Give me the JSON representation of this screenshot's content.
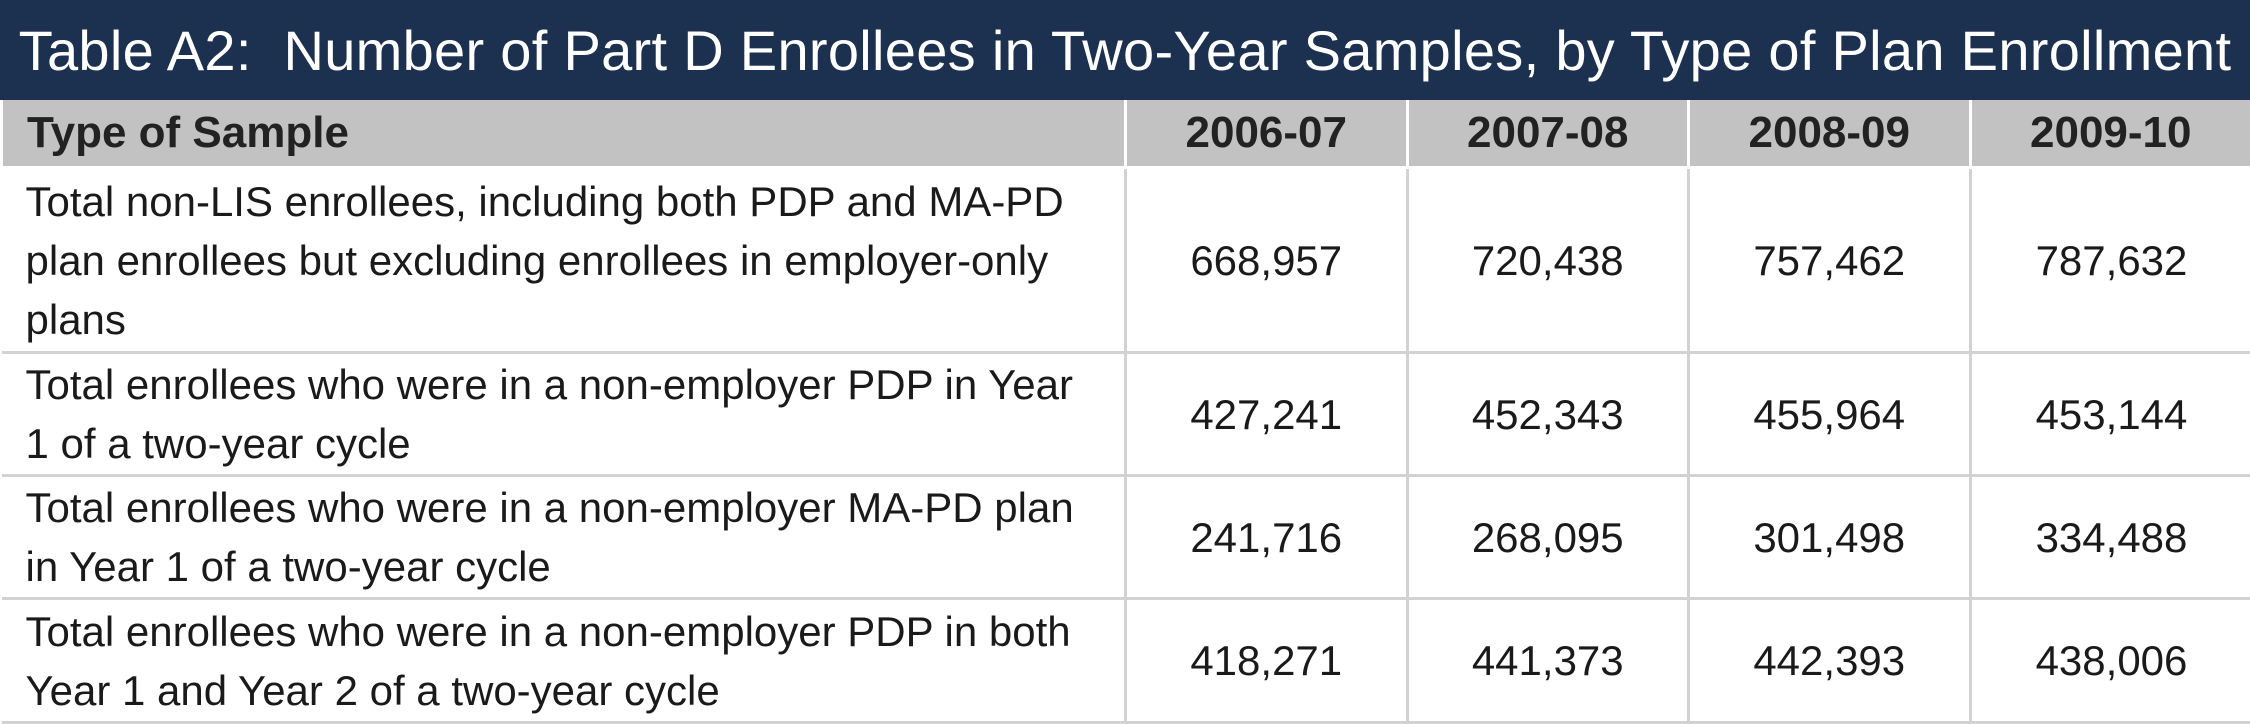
{
  "title": "Table A2:  Number of Part D Enrollees in Two-Year Samples, by Type of Plan Enrollment",
  "columns": [
    "Type of Sample",
    "2006-07",
    "2007-08",
    "2008-09",
    "2009-10"
  ],
  "rows": [
    {
      "label": "Total non-LIS enrollees, including both PDP and MA-PD plan enrollees but excluding enrollees in employer-only plans",
      "values": [
        "668,957",
        "720,438",
        "757,462",
        "787,632"
      ]
    },
    {
      "label": "Total enrollees who were in a non-employer PDP in Year 1 of a two-year cycle",
      "values": [
        "427,241",
        "452,343",
        "455,964",
        "453,144"
      ]
    },
    {
      "label": "Total enrollees who were in a non-employer MA-PD plan in Year 1 of a two-year cycle",
      "values": [
        "241,716",
        "268,095",
        "301,498",
        "334,488"
      ]
    },
    {
      "label": "Total enrollees who were in a non-employer PDP in both Year 1 and Year 2 of a two-year cycle",
      "values": [
        "418,271",
        "441,373",
        "442,393",
        "438,006"
      ]
    }
  ],
  "colors": {
    "title_bg": "#1c3050",
    "header_bg": "#c2c2c2",
    "grid": "#d2d2d2"
  }
}
